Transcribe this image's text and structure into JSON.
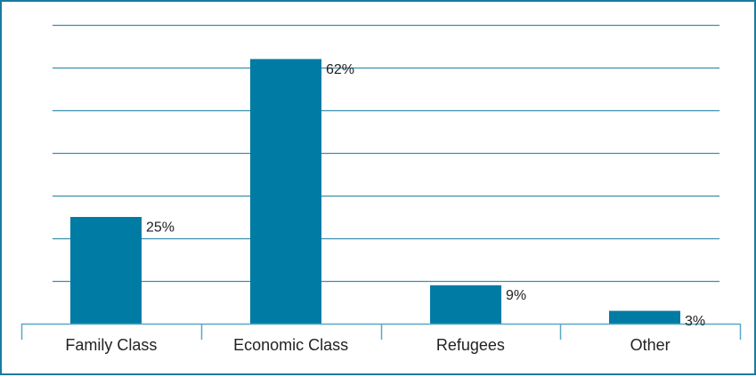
{
  "chart_data": {
    "type": "bar",
    "categories": [
      "Family Class",
      "Economic Class",
      "Refugees",
      "Other"
    ],
    "series": [
      {
        "values": [
          25,
          62,
          9,
          3
        ],
        "value_labels": [
          "25%",
          "62%",
          "9%",
          "3%"
        ]
      }
    ],
    "ylim": [
      0,
      70
    ],
    "y_gridline_step": 10,
    "grid": true,
    "legend": "none",
    "colors": {
      "bar": "#007ba4",
      "grid": "#3a8fb0",
      "axis": "#5aa7c7",
      "frame": "#1a7a9e"
    }
  }
}
